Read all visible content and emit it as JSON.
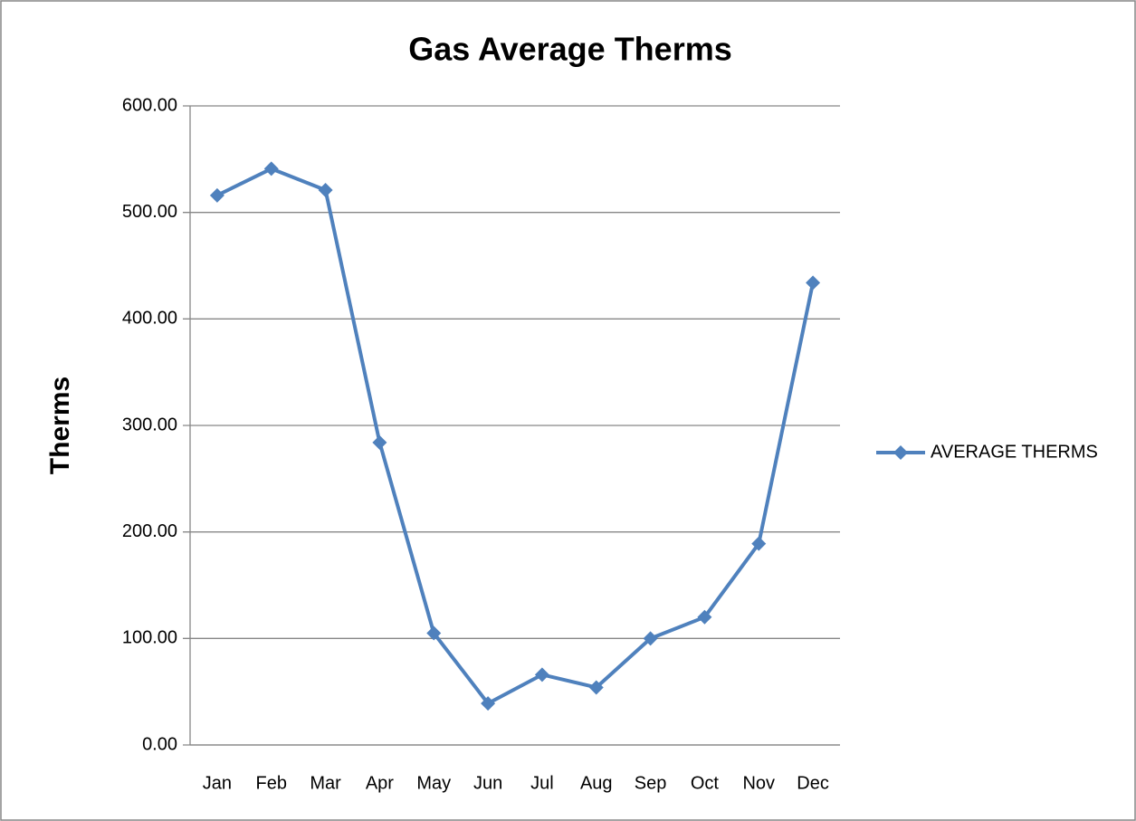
{
  "chart_data": {
    "type": "line",
    "title": "Gas Average Therms",
    "y_label": "Therms",
    "categories": [
      "Jan",
      "Feb",
      "Mar",
      "Apr",
      "May",
      "Jun",
      "Jul",
      "Aug",
      "Sep",
      "Oct",
      "Nov",
      "Dec"
    ],
    "series": [
      {
        "name": "AVERAGE THERMS",
        "color": "#4f81bd",
        "values": [
          516,
          541,
          521,
          284,
          105,
          39,
          66,
          54,
          100,
          120,
          189,
          434
        ]
      }
    ],
    "ylim": [
      0,
      600
    ],
    "yticks": [
      {
        "value": 0,
        "label": "0.00"
      },
      {
        "value": 100,
        "label": "100.00"
      },
      {
        "value": 200,
        "label": "200.00"
      },
      {
        "value": 300,
        "label": "300.00"
      },
      {
        "value": 400,
        "label": "400.00"
      },
      {
        "value": 500,
        "label": "500.00"
      },
      {
        "value": 600,
        "label": "600.00"
      }
    ],
    "grid": true,
    "legend": "right"
  }
}
